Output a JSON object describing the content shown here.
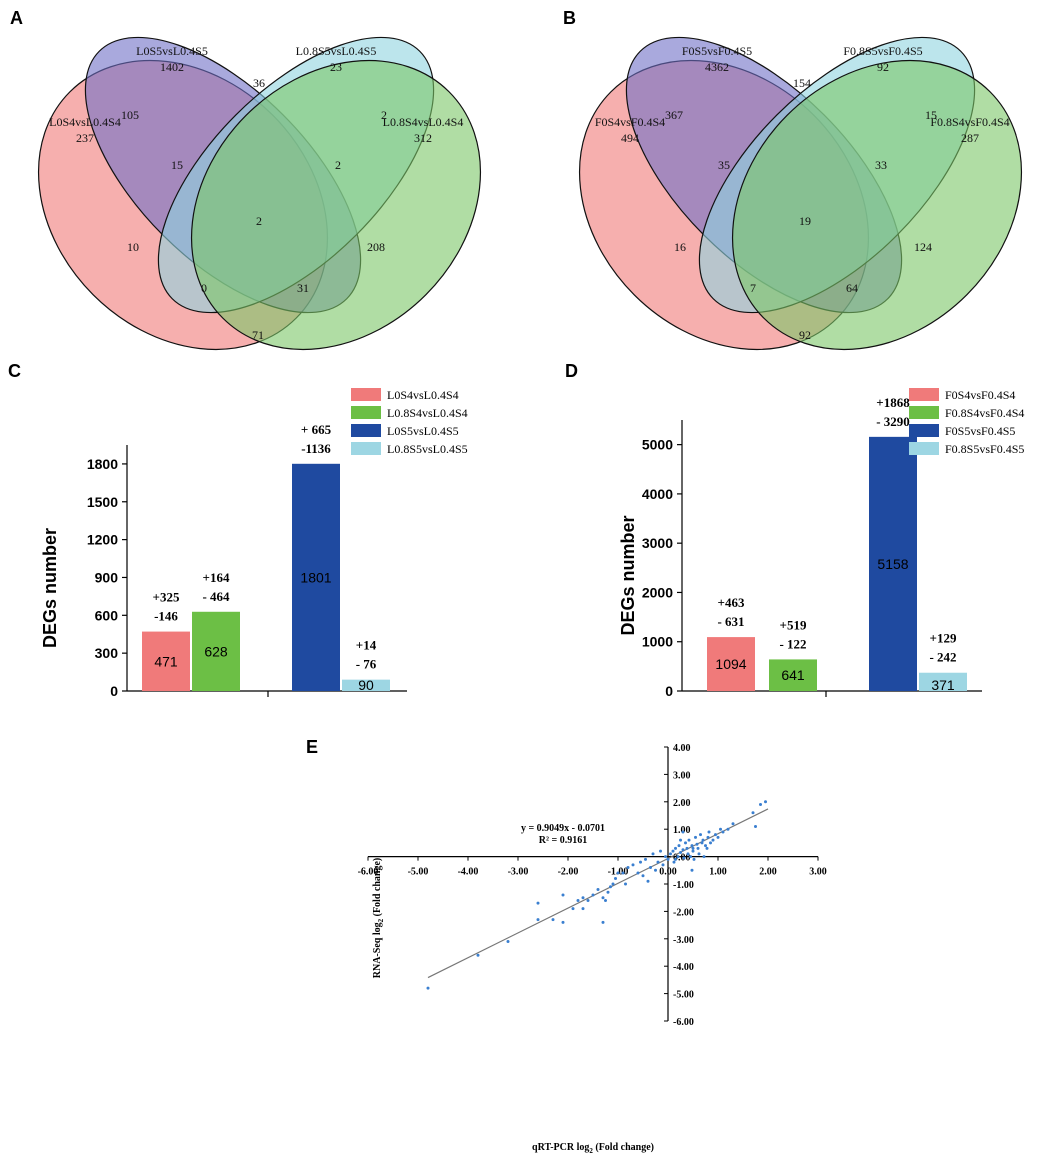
{
  "panels": [
    "A",
    "B",
    "C",
    "D",
    "E"
  ],
  "venn_a": {
    "sets": [
      "L0S4vsL0.4S4",
      "L0S5vsL0.4S5",
      "L0.8S5vsL0.4S5",
      "L0.8S4vsL0.4S4"
    ],
    "set_only_counts": [
      "237",
      "1402",
      "23",
      "312"
    ],
    "region_counts": [
      "105",
      "36",
      "2",
      "15",
      "2",
      "2",
      "10",
      "0",
      "31",
      "208",
      "71"
    ],
    "colors": [
      "#f07a78",
      "#6f6fc6",
      "#8fd3e0",
      "#7bc667"
    ]
  },
  "venn_b": {
    "sets": [
      "F0S4vsF0.4S4",
      "F0S5vsF0.4S5",
      "F0.8S5vsF0.4S5",
      "F0.8S4vsF0.4S4"
    ],
    "set_only_counts": [
      "494",
      "4362",
      "92",
      "287"
    ],
    "region_counts": [
      "367",
      "154",
      "15",
      "35",
      "33",
      "19",
      "16",
      "7",
      "64",
      "124",
      "92"
    ],
    "colors": [
      "#f07a78",
      "#6f6fc6",
      "#8fd3e0",
      "#7bc667"
    ]
  },
  "chart_data": [
    {
      "type": "bar",
      "panel": "C",
      "ylabel": "DEGs number",
      "ylim": [
        0,
        1950
      ],
      "yticks": [
        "0",
        "300",
        "600",
        "900",
        "1200",
        "1500",
        "1800"
      ],
      "ytick_values": [
        0,
        300,
        600,
        900,
        1200,
        1500,
        1800
      ],
      "series": [
        {
          "name": "L0S4vsL0.4S4",
          "value": 471,
          "value_label": "471",
          "up": "+325",
          "down": "-146",
          "color": "#f07a7a"
        },
        {
          "name": "L0.8S4vsL0.4S4",
          "value": 628,
          "value_label": "628",
          "up": "+164",
          "down": "- 464",
          "color": "#6cbf45"
        },
        {
          "name": "L0S5vsL0.4S5",
          "value": 1801,
          "value_label": "1801",
          "up": "+ 665",
          "down": "-1136",
          "color": "#1f4aa0"
        },
        {
          "name": "L0.8S5vsL0.4S5",
          "value": 90,
          "value_label": "90",
          "up": "+14",
          "down": "- 76",
          "color": "#9dd6e3"
        }
      ]
    },
    {
      "type": "bar",
      "panel": "D",
      "ylabel": "DEGs number",
      "ylim": [
        0,
        5500
      ],
      "yticks": [
        "0",
        "1000",
        "2000",
        "3000",
        "4000",
        "5000"
      ],
      "ytick_values": [
        0,
        1000,
        2000,
        3000,
        4000,
        5000
      ],
      "series": [
        {
          "name": "F0S4vsF0.4S4",
          "value": 1094,
          "value_label": "1094",
          "up": "+463",
          "down": "- 631",
          "color": "#f07a7a"
        },
        {
          "name": "F0.8S4vsF0.4S4",
          "value": 641,
          "value_label": "641",
          "up": "+519",
          "down": "- 122",
          "color": "#6cbf45"
        },
        {
          "name": "F0S5vsF0.4S5",
          "value": 5158,
          "value_label": "5158",
          "up": "+1868",
          "down": "- 3290",
          "color": "#1f4aa0"
        },
        {
          "name": "F0.8S5vsF0.4S5",
          "value": 371,
          "value_label": "371",
          "up": "+129",
          "down": "- 242",
          "color": "#9dd6e3"
        }
      ]
    },
    {
      "type": "scatter",
      "panel": "E",
      "xlabel": "qRT-PCR log2 (Fold change)",
      "xlabel_main": "qRT-PCR log",
      "xlabel_sub": "2",
      "xlabel_tail": " (Fold change)",
      "ylabel_main": "RNA-Seq log",
      "ylabel_sub": "2",
      "ylabel_tail": " (Fold change)",
      "equation": "y = 0.9049x - 0.0701",
      "r2": "R² = 0.9161",
      "xlim": [
        -6,
        3
      ],
      "ylim": [
        -6,
        4
      ],
      "xticks": [
        "-6.00",
        "-5.00",
        "-4.00",
        "-3.00",
        "-2.00",
        "-1.00",
        "0.00",
        "1.00",
        "2.00",
        "3.00"
      ],
      "xtick_values": [
        -6,
        -5,
        -4,
        -3,
        -2,
        -1,
        0,
        1,
        2,
        3
      ],
      "yticks": [
        "4.00",
        "3.00",
        "2.00",
        "1.00",
        "0.00",
        "-1.00",
        "-2.00",
        "-3.00",
        "-4.00",
        "-5.00",
        "-6.00"
      ],
      "ytick_values": [
        4,
        3,
        2,
        1,
        0,
        -1,
        -2,
        -3,
        -4,
        -5,
        -6
      ],
      "trendline": {
        "slope": 0.9049,
        "intercept": -0.0701,
        "x_range": [
          -4.8,
          2.0
        ]
      },
      "points": [
        [
          -4.8,
          -4.8
        ],
        [
          -3.8,
          -3.6
        ],
        [
          -3.2,
          -3.1
        ],
        [
          -2.6,
          -1.7
        ],
        [
          -2.6,
          -2.3
        ],
        [
          -2.3,
          -2.3
        ],
        [
          -2.1,
          -2.4
        ],
        [
          -2.1,
          -1.4
        ],
        [
          -1.9,
          -1.9
        ],
        [
          -1.8,
          -1.6
        ],
        [
          -1.7,
          -1.9
        ],
        [
          -1.7,
          -1.5
        ],
        [
          -1.6,
          -1.6
        ],
        [
          -1.5,
          -1.4
        ],
        [
          -1.4,
          -1.2
        ],
        [
          -1.3,
          -2.4
        ],
        [
          -1.3,
          -1.5
        ],
        [
          -1.25,
          -1.6
        ],
        [
          -1.2,
          -1.3
        ],
        [
          -1.15,
          -1.1
        ],
        [
          -1.1,
          -1.0
        ],
        [
          -1.05,
          -0.8
        ],
        [
          -1.0,
          -0.6
        ],
        [
          -0.9,
          -0.6
        ],
        [
          -0.85,
          -1.0
        ],
        [
          -0.8,
          -0.4
        ],
        [
          -0.7,
          -0.3
        ],
        [
          -0.6,
          -0.6
        ],
        [
          -0.55,
          -0.2
        ],
        [
          -0.5,
          -0.7
        ],
        [
          -0.45,
          -0.1
        ],
        [
          -0.4,
          -0.9
        ],
        [
          -0.35,
          -0.4
        ],
        [
          -0.3,
          0.1
        ],
        [
          -0.25,
          -0.5
        ],
        [
          -0.2,
          -0.2
        ],
        [
          -0.15,
          0.2
        ],
        [
          -0.1,
          -0.3
        ],
        [
          -0.05,
          0.0
        ],
        [
          0.0,
          -0.1
        ],
        [
          0.05,
          0.1
        ],
        [
          0.1,
          0.2
        ],
        [
          0.12,
          -0.2
        ],
        [
          0.15,
          0.3
        ],
        [
          0.2,
          0.0
        ],
        [
          0.22,
          0.4
        ],
        [
          0.25,
          0.15
        ],
        [
          0.3,
          0.25
        ],
        [
          0.32,
          -0.05
        ],
        [
          0.35,
          0.5
        ],
        [
          0.38,
          0.3
        ],
        [
          0.4,
          0.1
        ],
        [
          0.42,
          0.6
        ],
        [
          0.45,
          0.0
        ],
        [
          0.48,
          0.4
        ],
        [
          0.5,
          0.2
        ],
        [
          0.52,
          -0.1
        ],
        [
          0.55,
          0.7
        ],
        [
          0.58,
          0.45
        ],
        [
          0.6,
          0.3
        ],
        [
          0.62,
          0.1
        ],
        [
          0.65,
          0.8
        ],
        [
          0.68,
          0.5
        ],
        [
          0.7,
          0.6
        ],
        [
          0.72,
          0.0
        ],
        [
          0.75,
          0.4
        ],
        [
          0.78,
          0.3
        ],
        [
          0.8,
          0.7
        ],
        [
          0.82,
          0.9
        ],
        [
          0.85,
          0.5
        ],
        [
          0.9,
          0.6
        ],
        [
          0.95,
          0.8
        ],
        [
          1.0,
          0.7
        ],
        [
          1.05,
          1.0
        ],
        [
          1.1,
          0.9
        ],
        [
          1.2,
          1.0
        ],
        [
          1.3,
          1.2
        ],
        [
          1.7,
          1.6
        ],
        [
          1.75,
          1.1
        ],
        [
          1.85,
          1.9
        ],
        [
          1.95,
          2.0
        ],
        [
          0.48,
          -0.5
        ],
        [
          0.3,
          0.9
        ],
        [
          0.5,
          0.3
        ],
        [
          0.25,
          0.6
        ],
        [
          0.15,
          -0.1
        ]
      ]
    }
  ]
}
